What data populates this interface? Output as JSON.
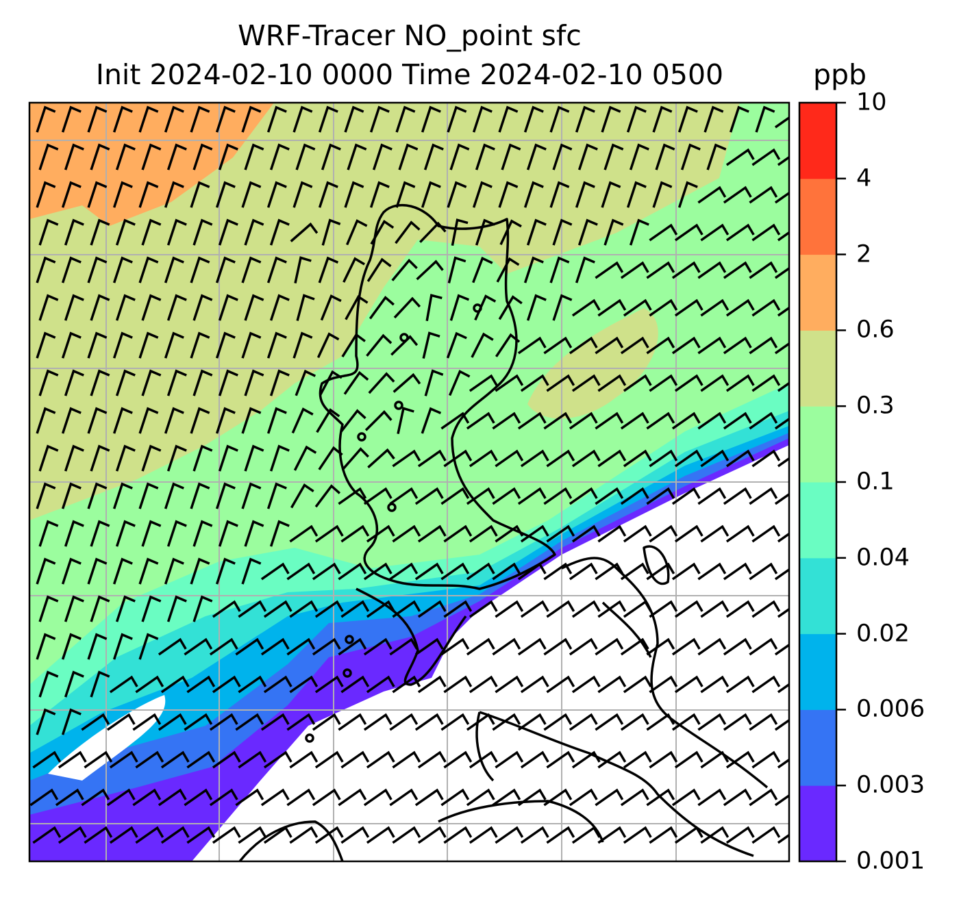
{
  "title": {
    "line1": "WRF-Tracer NO_point sfc",
    "line2": "Init 2024-02-10 0000 Time 2024-02-10 0500",
    "units": "ppb"
  },
  "colorbar": {
    "levels": [
      "0.001",
      "0.003",
      "0.006",
      "0.02",
      "0.04",
      "0.1",
      "0.3",
      "0.6",
      "2",
      "4",
      "10"
    ],
    "colors": [
      "#6a29ff",
      "#3574f4",
      "#00b3ec",
      "#33e1d6",
      "#6afdc2",
      "#9bfd9e",
      "#cfe18a",
      "#ffad5f",
      "#ff733b",
      "#ff291a"
    ]
  },
  "map": {
    "below_min_color": "#ffffff",
    "gridline_color": "#b0b0b0",
    "coastline_color": "#000000"
  }
}
